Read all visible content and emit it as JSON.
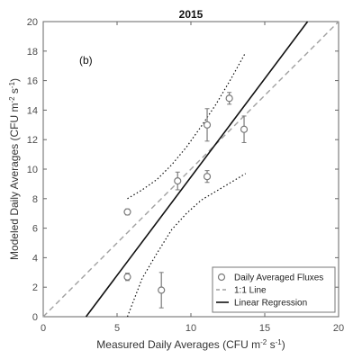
{
  "chart_data": {
    "type": "scatter",
    "title": "2015",
    "panel_label": "(b)",
    "xlabel": {
      "prefix": "Measured Daily Averages (CFU m",
      "exp1": "-2",
      "middle": " s",
      "exp2": "-1",
      "suffix": ")"
    },
    "ylabel": {
      "prefix": "Modeled Daily Averages (CFU m",
      "exp1": "-2",
      "middle": " s",
      "exp2": "-1",
      "suffix": ")"
    },
    "xlim": [
      0,
      20
    ],
    "ylim": [
      0,
      20
    ],
    "xticks": [
      0,
      5,
      10,
      15,
      20
    ],
    "yticks": [
      0,
      2,
      4,
      6,
      8,
      10,
      12,
      14,
      16,
      18,
      20
    ],
    "grid": false,
    "legend_position": "bottom-right",
    "colors": {
      "points": "#7a7a7a",
      "one_to_one": "#a0a0a0",
      "regression": "#111111",
      "confidence": "#111111",
      "axis": "#666666"
    },
    "series": [
      {
        "name": "Daily Averaged Fluxes",
        "kind": "points",
        "points": [
          {
            "x": 5.7,
            "y": 7.1,
            "err": 0.2
          },
          {
            "x": 5.7,
            "y": 2.7,
            "err": 0.25
          },
          {
            "x": 8.0,
            "y": 1.8,
            "err": 1.2
          },
          {
            "x": 9.1,
            "y": 9.2,
            "err": 0.6
          },
          {
            "x": 11.1,
            "y": 9.5,
            "err": 0.4
          },
          {
            "x": 11.1,
            "y": 13.0,
            "err": 1.1
          },
          {
            "x": 12.6,
            "y": 14.8,
            "err": 0.4
          },
          {
            "x": 13.6,
            "y": 12.7,
            "err": 0.9
          }
        ]
      },
      {
        "name": "1:1 Line",
        "kind": "line",
        "style": "dashed",
        "x": [
          0,
          20
        ],
        "y": [
          0,
          20
        ]
      },
      {
        "name": "Linear Regression",
        "kind": "line",
        "style": "solid",
        "x": [
          2.9,
          17.9
        ],
        "y": [
          0,
          20
        ]
      }
    ],
    "confidence_bands": [
      {
        "x": [
          5.7,
          6.7,
          7.7,
          8.7,
          9.7,
          10.7,
          11.7,
          12.7,
          13.7
        ],
        "y": [
          8.0,
          8.6,
          9.3,
          10.3,
          11.5,
          12.9,
          14.4,
          16.1,
          17.9
        ]
      },
      {
        "x": [
          5.7,
          6.7,
          7.7,
          8.7,
          9.7,
          10.7,
          11.7,
          12.7,
          13.7
        ],
        "y": [
          0.0,
          2.6,
          4.3,
          5.9,
          7.0,
          7.9,
          8.5,
          9.1,
          9.7
        ]
      }
    ]
  }
}
